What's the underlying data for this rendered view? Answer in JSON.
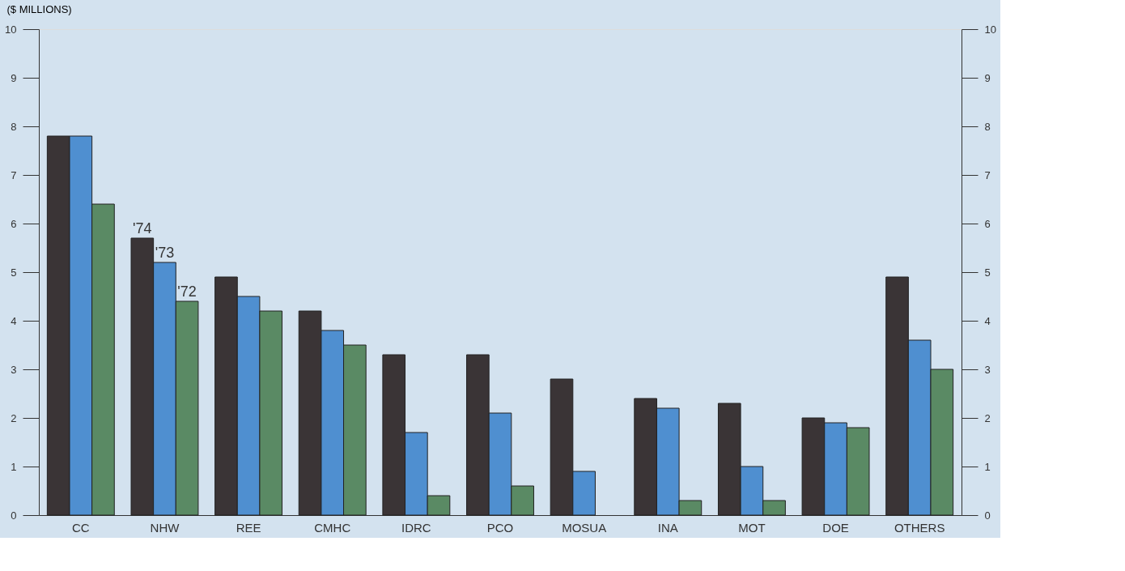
{
  "chart_data": {
    "type": "bar",
    "ylabel": "($ MILLIONS)",
    "categories": [
      "CC",
      "NHW",
      "REE",
      "CMHC",
      "IDRC",
      "PCO",
      "MOSUA",
      "INA",
      "MOT",
      "DOE",
      "OTHERS"
    ],
    "series": [
      {
        "name": "'74",
        "color": "#3a3436",
        "values": [
          7.8,
          5.7,
          4.9,
          4.2,
          3.3,
          3.3,
          2.8,
          2.4,
          2.3,
          2.0,
          4.9
        ]
      },
      {
        "name": "'73",
        "color": "#4f8fd0",
        "values": [
          7.8,
          5.2,
          4.5,
          3.8,
          1.7,
          2.1,
          0.9,
          2.2,
          1.0,
          1.9,
          3.6
        ]
      },
      {
        "name": "'72",
        "color": "#5a8a64",
        "values": [
          6.4,
          4.4,
          4.2,
          3.5,
          0.4,
          0.6,
          null,
          0.3,
          0.3,
          1.8,
          3.0
        ]
      }
    ],
    "ylim": [
      0,
      10
    ],
    "yticks": [
      0,
      1,
      2,
      3,
      4,
      5,
      6,
      7,
      8,
      9,
      10
    ],
    "y2lim": [
      0,
      10
    ],
    "y2ticks": [
      0,
      1,
      2,
      3,
      4,
      5,
      6,
      7,
      8,
      9,
      10
    ],
    "grid": false,
    "legend": false
  }
}
